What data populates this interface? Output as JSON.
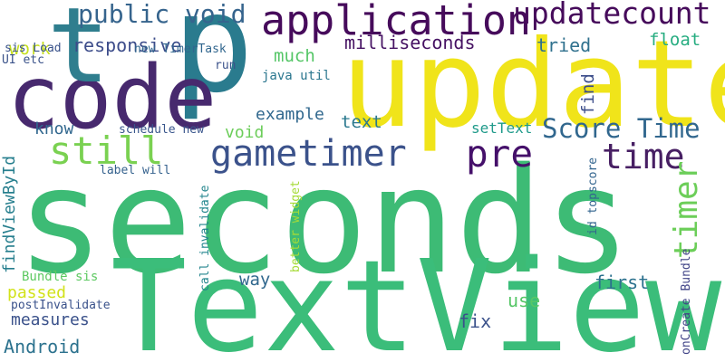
{
  "words": [
    {
      "text": "seconds",
      "color": "#3dbb75"
    },
    {
      "text": "TextView",
      "color": "#3bbd7a"
    },
    {
      "text": "update",
      "color": "#f0e41a"
    },
    {
      "text": "p",
      "color": "#2a7b8e"
    },
    {
      "text": "code",
      "color": "#47296e"
    },
    {
      "text": "t",
      "color": "#2f7e8e"
    },
    {
      "text": "application",
      "color": "#460b5b"
    },
    {
      "text": "updatecount",
      "color": "#460b5b"
    },
    {
      "text": "public void",
      "color": "#36648d"
    },
    {
      "text": "gametimer",
      "color": "#3b528b"
    },
    {
      "text": "Score Time",
      "color": "#31678e"
    },
    {
      "text": "pre",
      "color": "#45106a"
    },
    {
      "text": "time",
      "color": "#471f63"
    },
    {
      "text": "still",
      "color": "#7ad151"
    },
    {
      "text": "timer",
      "color": "#6cce59"
    },
    {
      "text": "milliseconds",
      "color": "#461263"
    },
    {
      "text": "responsive",
      "color": "#3c4c8a"
    },
    {
      "text": "tried",
      "color": "#30718e"
    },
    {
      "text": "float",
      "color": "#27ad81"
    },
    {
      "text": "much",
      "color": "#55c667"
    },
    {
      "text": "find",
      "color": "#3c4d8a"
    },
    {
      "text": "work",
      "color": "#c5df1f"
    },
    {
      "text": "sis Load",
      "color": "#3a538b"
    },
    {
      "text": "new TimerTask",
      "color": "#31668e"
    },
    {
      "text": "UI etc",
      "color": "#3b538a"
    },
    {
      "text": "run",
      "color": "#3b528b"
    },
    {
      "text": "java util",
      "color": "#2a768e"
    },
    {
      "text": "example",
      "color": "#31688e"
    },
    {
      "text": "text",
      "color": "#2a788e"
    },
    {
      "text": "setText",
      "color": "#1f9a8a"
    },
    {
      "text": "know",
      "color": "#31678e"
    },
    {
      "text": "void",
      "color": "#6ccd5a"
    },
    {
      "text": "schedule new",
      "color": "#39568c"
    },
    {
      "text": "label will",
      "color": "#34618d"
    },
    {
      "text": "findViewById",
      "color": "#277f8e"
    },
    {
      "text": "call invalidate",
      "color": "#24868e"
    },
    {
      "text": "better widget",
      "color": "#a5db36"
    },
    {
      "text": "id topscore",
      "color": "#32648e"
    },
    {
      "text": "way",
      "color": "#31688e"
    },
    {
      "text": "first",
      "color": "#2c718e"
    },
    {
      "text": "Bundle sis",
      "color": "#5ec962"
    },
    {
      "text": "passed",
      "color": "#d2e21b"
    },
    {
      "text": "postInvalidate",
      "color": "#3a528b"
    },
    {
      "text": "use",
      "color": "#56c667"
    },
    {
      "text": "measures",
      "color": "#3b528b"
    },
    {
      "text": "fix",
      "color": "#3b528b"
    },
    {
      "text": "Android",
      "color": "#2c728e"
    },
    {
      "text": "onCreate Bundle",
      "color": "#414487"
    }
  ]
}
